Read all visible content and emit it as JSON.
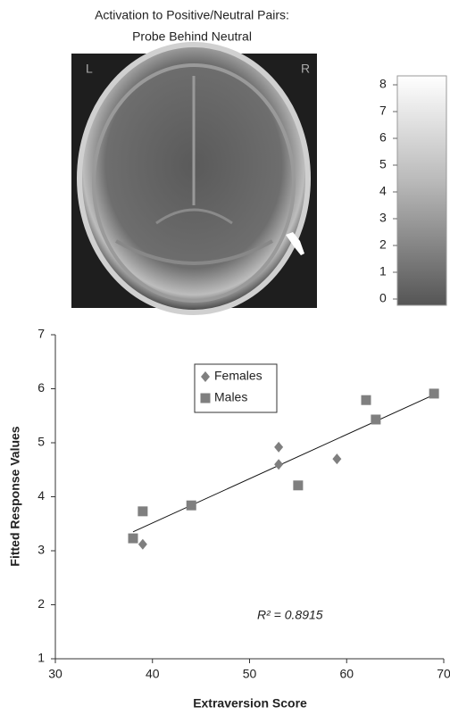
{
  "figure": {
    "title_lines": [
      "Activation to Positive/Neutral Pairs:",
      "Probe Behind Neutral"
    ],
    "brain_labels": {
      "left": "L",
      "right": "R"
    },
    "colorbar": {
      "lim": [
        0,
        8
      ],
      "ticks": [
        0,
        1,
        2,
        3,
        4,
        5,
        6,
        7,
        8
      ]
    }
  },
  "chart_data": {
    "type": "scatter",
    "x_label": "Extraversion Score",
    "y_label": "Fitted Response Values",
    "xlim": [
      30,
      70
    ],
    "xticks": [
      30,
      40,
      50,
      60,
      70
    ],
    "ylim": [
      1,
      7
    ],
    "yticks": [
      1,
      2,
      3,
      4,
      5,
      6,
      7
    ],
    "series": [
      {
        "name": "Females",
        "marker": "diamond",
        "color": "#7f7f7f",
        "x": [
          39,
          53,
          53,
          59
        ],
        "values": [
          3.12,
          4.92,
          4.6,
          4.7
        ]
      },
      {
        "name": "Males",
        "marker": "square",
        "color": "#7f7f7f",
        "x": [
          38,
          39,
          44,
          55,
          62,
          63,
          69
        ],
        "values": [
          3.23,
          3.73,
          3.84,
          4.21,
          5.79,
          5.43,
          5.91
        ]
      }
    ],
    "trendline": {
      "x": [
        38,
        69
      ],
      "y": [
        3.35,
        5.89
      ]
    },
    "annotation": "R² = 0.8915"
  }
}
